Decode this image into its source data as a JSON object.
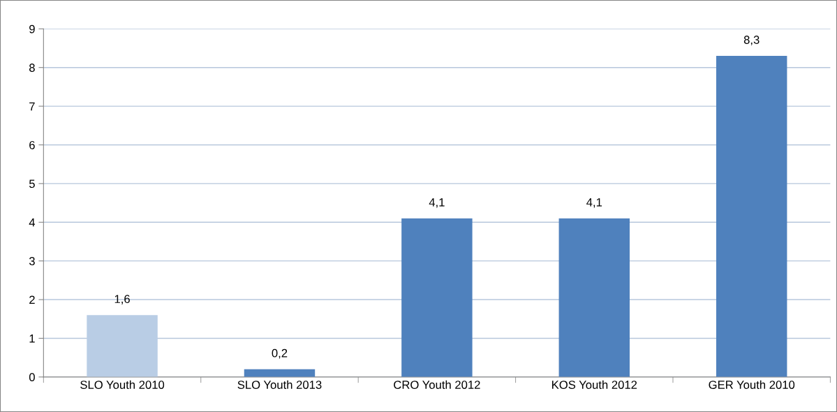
{
  "chart_data": {
    "type": "bar",
    "categories": [
      "SLO Youth 2010",
      "SLO Youth 2013",
      "CRO Youth 2012",
      "KOS Youth 2012",
      "GER Youth 2010"
    ],
    "values": [
      1.6,
      0.2,
      4.1,
      4.1,
      8.3
    ],
    "colors": [
      "#b9cde5",
      "#4f81bd",
      "#4f81bd",
      "#4f81bd",
      "#4f81bd"
    ],
    "value_labels": [
      "1,6",
      "0,2",
      "4,1",
      "4,1",
      "8,3"
    ],
    "ylim": [
      0,
      9
    ],
    "yticks": [
      0,
      1,
      2,
      3,
      4,
      5,
      6,
      7,
      8,
      9
    ],
    "grid": "y",
    "legend": false
  }
}
